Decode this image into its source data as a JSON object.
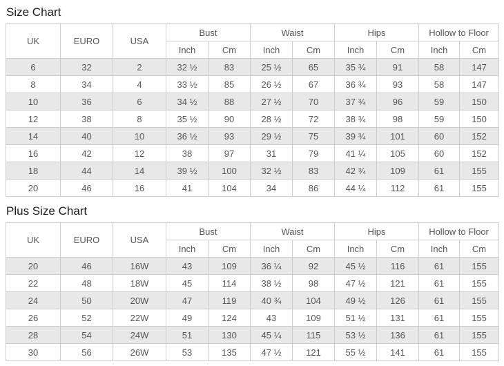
{
  "colors": {
    "stripe": "#e8e8e8",
    "border": "#cccccc",
    "text": "#555555",
    "title": "#1b1b1b",
    "background": "#ffffff"
  },
  "tables": [
    {
      "title": "Size Chart",
      "headers": {
        "uk": "UK",
        "euro": "EURO",
        "usa": "USA",
        "bust": "Bust",
        "waist": "Waist",
        "hips": "Hips",
        "hollow_to_floor": "Hollow to Floor",
        "inch": "Inch",
        "cm": "Cm"
      },
      "rows": [
        [
          "6",
          "32",
          "2",
          "32 ½",
          "83",
          "25 ½",
          "65",
          "35 ¾",
          "91",
          "58",
          "147"
        ],
        [
          "8",
          "34",
          "4",
          "33 ½",
          "85",
          "26 ½",
          "67",
          "36 ¾",
          "93",
          "58",
          "147"
        ],
        [
          "10",
          "36",
          "6",
          "34 ½",
          "88",
          "27 ½",
          "70",
          "37 ¾",
          "96",
          "59",
          "150"
        ],
        [
          "12",
          "38",
          "8",
          "35 ½",
          "90",
          "28 ½",
          "72",
          "38 ¾",
          "98",
          "59",
          "150"
        ],
        [
          "14",
          "40",
          "10",
          "36 ½",
          "93",
          "29 ½",
          "75",
          "39 ¾",
          "101",
          "60",
          "152"
        ],
        [
          "16",
          "42",
          "12",
          "38",
          "97",
          "31",
          "79",
          "41 ¼",
          "105",
          "60",
          "152"
        ],
        [
          "18",
          "44",
          "14",
          "39 ½",
          "100",
          "32 ½",
          "83",
          "42 ¾",
          "109",
          "61",
          "155"
        ],
        [
          "20",
          "46",
          "16",
          "41",
          "104",
          "34",
          "86",
          "44 ¼",
          "112",
          "61",
          "155"
        ]
      ]
    },
    {
      "title": "Plus Size Chart",
      "headers": {
        "uk": "UK",
        "euro": "EURO",
        "usa": "USA",
        "bust": "Bust",
        "waist": "Waist",
        "hips": "Hips",
        "hollow_to_floor": "Hollow to Floor",
        "inch": "Inch",
        "cm": "Cm"
      },
      "rows": [
        [
          "20",
          "46",
          "16W",
          "43",
          "109",
          "36 ¼",
          "92",
          "45 ½",
          "116",
          "61",
          "155"
        ],
        [
          "22",
          "48",
          "18W",
          "45",
          "114",
          "38 ½",
          "98",
          "47 ½",
          "121",
          "61",
          "155"
        ],
        [
          "24",
          "50",
          "20W",
          "47",
          "119",
          "40 ¾",
          "104",
          "49 ½",
          "126",
          "61",
          "155"
        ],
        [
          "26",
          "52",
          "22W",
          "49",
          "124",
          "43",
          "109",
          "51 ½",
          "131",
          "61",
          "155"
        ],
        [
          "28",
          "54",
          "24W",
          "51",
          "130",
          "45 ¼",
          "115",
          "53 ½",
          "136",
          "61",
          "155"
        ],
        [
          "30",
          "56",
          "26W",
          "53",
          "135",
          "47 ½",
          "121",
          "55 ½",
          "141",
          "61",
          "155"
        ]
      ]
    }
  ]
}
